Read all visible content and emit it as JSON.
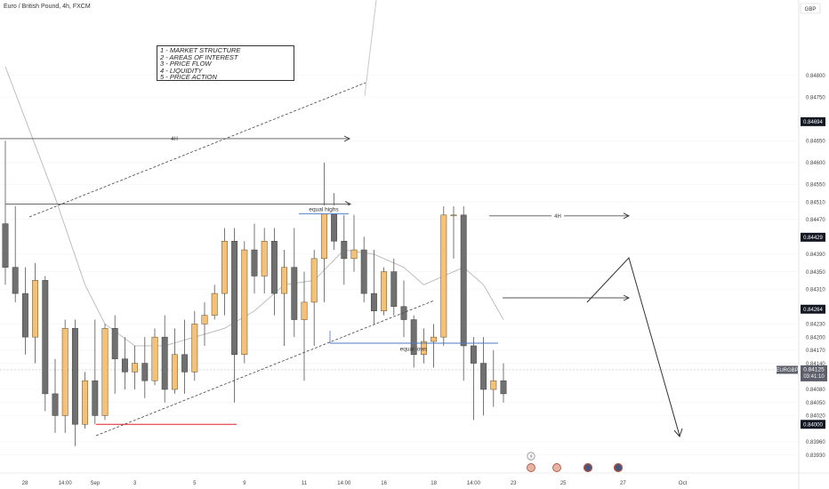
{
  "header": {
    "title": "Euro / British Pound, 4h, FXCM"
  },
  "annotations": {
    "legend_lines": [
      "1 - MARKET STRUCTURE",
      "2 - AREAS OF INTEREST",
      "3 - PRICE FLOW",
      "4 - LIQUIDITY",
      "5 - PRICE ACTION"
    ],
    "equal_highs": "equal highs",
    "equal_lows": "equal lows",
    "tf_label": "4H"
  },
  "colors": {
    "bull": "#f5c176",
    "bear": "#707070",
    "wick": "#555555",
    "ma": "#b8b8b8",
    "equal_lows_line": "#4a78c8",
    "support_line": "#e02020",
    "accent_dark": "#131722",
    "ticker_tag": "#5d606b"
  },
  "chart_data": {
    "type": "candlestick",
    "symbol": "EURGBP",
    "interval": "4h",
    "currency": "GBP",
    "ylim": [
      0.8387,
      0.8492
    ],
    "y_ticks": [
      "0.84800",
      "0.84750",
      "0.84650",
      "0.84600",
      "0.84550",
      "0.84510",
      "0.84470",
      "0.84390",
      "0.84350",
      "0.84310",
      "0.84230",
      "0.84200",
      "0.84170",
      "0.84140",
      "0.84080",
      "0.84050",
      "0.84020",
      "0.83960",
      "0.83930"
    ],
    "price_tags": [
      {
        "label": "0.84694",
        "value": 0.84694
      },
      {
        "label": "0.84429",
        "value": 0.84429
      },
      {
        "label": "0.84264",
        "value": 0.84264
      },
      {
        "label": "0.84000",
        "value": 0.84
      }
    ],
    "current": {
      "symbol": "EURGBP",
      "price": "0.84125",
      "countdown": "03:41:10",
      "value": 0.84125
    },
    "x_ticks": [
      {
        "label": "28",
        "bar": 0
      },
      {
        "label": "14:00",
        "bar": 6
      },
      {
        "label": "Sep",
        "bar": 9
      },
      {
        "label": "3",
        "bar": 13
      },
      {
        "label": "5",
        "bar": 19
      },
      {
        "label": "9",
        "bar": 24
      },
      {
        "label": "11",
        "bar": 30
      },
      {
        "label": "14:00",
        "bar": 34
      },
      {
        "label": "16",
        "bar": 38
      },
      {
        "label": "18",
        "bar": 43
      },
      {
        "label": "14:00",
        "bar": 47
      },
      {
        "label": "23",
        "bar": 51
      },
      {
        "label": "25",
        "bar": 56
      },
      {
        "label": "27",
        "bar": 62
      },
      {
        "label": "Oct",
        "bar": 68
      }
    ],
    "candles": [
      [
        0.8446,
        0.8465,
        0.8432,
        0.8436
      ],
      [
        0.8436,
        0.845,
        0.8428,
        0.843
      ],
      [
        0.843,
        0.8436,
        0.8416,
        0.842
      ],
      [
        0.842,
        0.8437,
        0.8414,
        0.8433
      ],
      [
        0.8433,
        0.8434,
        0.8403,
        0.8407
      ],
      [
        0.8407,
        0.8415,
        0.8398,
        0.8402
      ],
      [
        0.8402,
        0.8424,
        0.8398,
        0.8422
      ],
      [
        0.8422,
        0.8424,
        0.8395,
        0.84
      ],
      [
        0.84,
        0.8412,
        0.8399,
        0.841
      ],
      [
        0.841,
        0.8424,
        0.84,
        0.8402
      ],
      [
        0.8402,
        0.8423,
        0.8401,
        0.8422
      ],
      [
        0.8422,
        0.8425,
        0.8407,
        0.8415
      ],
      [
        0.8415,
        0.842,
        0.8408,
        0.8412
      ],
      [
        0.8412,
        0.8418,
        0.8408,
        0.8414
      ],
      [
        0.8414,
        0.842,
        0.8406,
        0.841
      ],
      [
        0.841,
        0.8422,
        0.8409,
        0.842
      ],
      [
        0.842,
        0.8425,
        0.8405,
        0.8408
      ],
      [
        0.8408,
        0.8422,
        0.8407,
        0.8416
      ],
      [
        0.8416,
        0.8424,
        0.8407,
        0.8412
      ],
      [
        0.8412,
        0.8426,
        0.841,
        0.8423
      ],
      [
        0.8423,
        0.8428,
        0.8418,
        0.8425
      ],
      [
        0.8425,
        0.8432,
        0.8424,
        0.843
      ],
      [
        0.843,
        0.8445,
        0.8425,
        0.8442
      ],
      [
        0.8442,
        0.8445,
        0.8405,
        0.8416
      ],
      [
        0.8416,
        0.8442,
        0.8414,
        0.844
      ],
      [
        0.844,
        0.8446,
        0.843,
        0.8434
      ],
      [
        0.8434,
        0.8445,
        0.843,
        0.8442
      ],
      [
        0.8442,
        0.8445,
        0.8425,
        0.843
      ],
      [
        0.843,
        0.844,
        0.8418,
        0.8436
      ],
      [
        0.8436,
        0.8445,
        0.842,
        0.8424
      ],
      [
        0.8424,
        0.8435,
        0.841,
        0.8428
      ],
      [
        0.8428,
        0.844,
        0.8418,
        0.8438
      ],
      [
        0.8438,
        0.846,
        0.8428,
        0.845
      ],
      [
        0.845,
        0.8453,
        0.844,
        0.8442
      ],
      [
        0.8442,
        0.8448,
        0.8432,
        0.8438
      ],
      [
        0.8438,
        0.8448,
        0.8435,
        0.844
      ],
      [
        0.844,
        0.8443,
        0.8428,
        0.843
      ],
      [
        0.843,
        0.844,
        0.8423,
        0.8426
      ],
      [
        0.8426,
        0.8436,
        0.8425,
        0.8435
      ],
      [
        0.8435,
        0.8438,
        0.8425,
        0.8427
      ],
      [
        0.8427,
        0.8433,
        0.842,
        0.8424
      ],
      [
        0.8424,
        0.8425,
        0.8413,
        0.8416
      ],
      [
        0.8416,
        0.8422,
        0.8414,
        0.8419
      ],
      [
        0.8419,
        0.8423,
        0.8413,
        0.842
      ],
      [
        0.842,
        0.845,
        0.8418,
        0.8448
      ],
      [
        0.8448,
        0.845,
        0.8438,
        0.8448
      ],
      [
        0.8448,
        0.845,
        0.841,
        0.8418
      ],
      [
        0.8418,
        0.842,
        0.8401,
        0.8414
      ],
      [
        0.8414,
        0.842,
        0.8402,
        0.8408
      ],
      [
        0.8408,
        0.8417,
        0.8404,
        0.841
      ],
      [
        0.841,
        0.8414,
        0.8405,
        0.8407
      ]
    ],
    "moving_average": [
      [
        0,
        0.8482
      ],
      [
        2,
        0.847
      ],
      [
        5,
        0.8452
      ],
      [
        8,
        0.8432
      ],
      [
        10,
        0.8423
      ],
      [
        13,
        0.8418
      ],
      [
        16,
        0.8418
      ],
      [
        19,
        0.842
      ],
      [
        22,
        0.8422
      ],
      [
        25,
        0.8426
      ],
      [
        28,
        0.8432
      ],
      [
        31,
        0.8433
      ],
      [
        34,
        0.844
      ],
      [
        37,
        0.8439
      ],
      [
        40,
        0.8436
      ],
      [
        42,
        0.8432
      ],
      [
        44,
        0.8434
      ],
      [
        46,
        0.8436
      ],
      [
        48,
        0.8432
      ],
      [
        50,
        0.8424
      ]
    ],
    "levels": {
      "top_4h": 0.84655,
      "equal_highs": 0.84505,
      "right_4h": 0.84478,
      "projection_level": 0.8429,
      "equal_lows": 0.84186,
      "support": 0.84
    }
  }
}
